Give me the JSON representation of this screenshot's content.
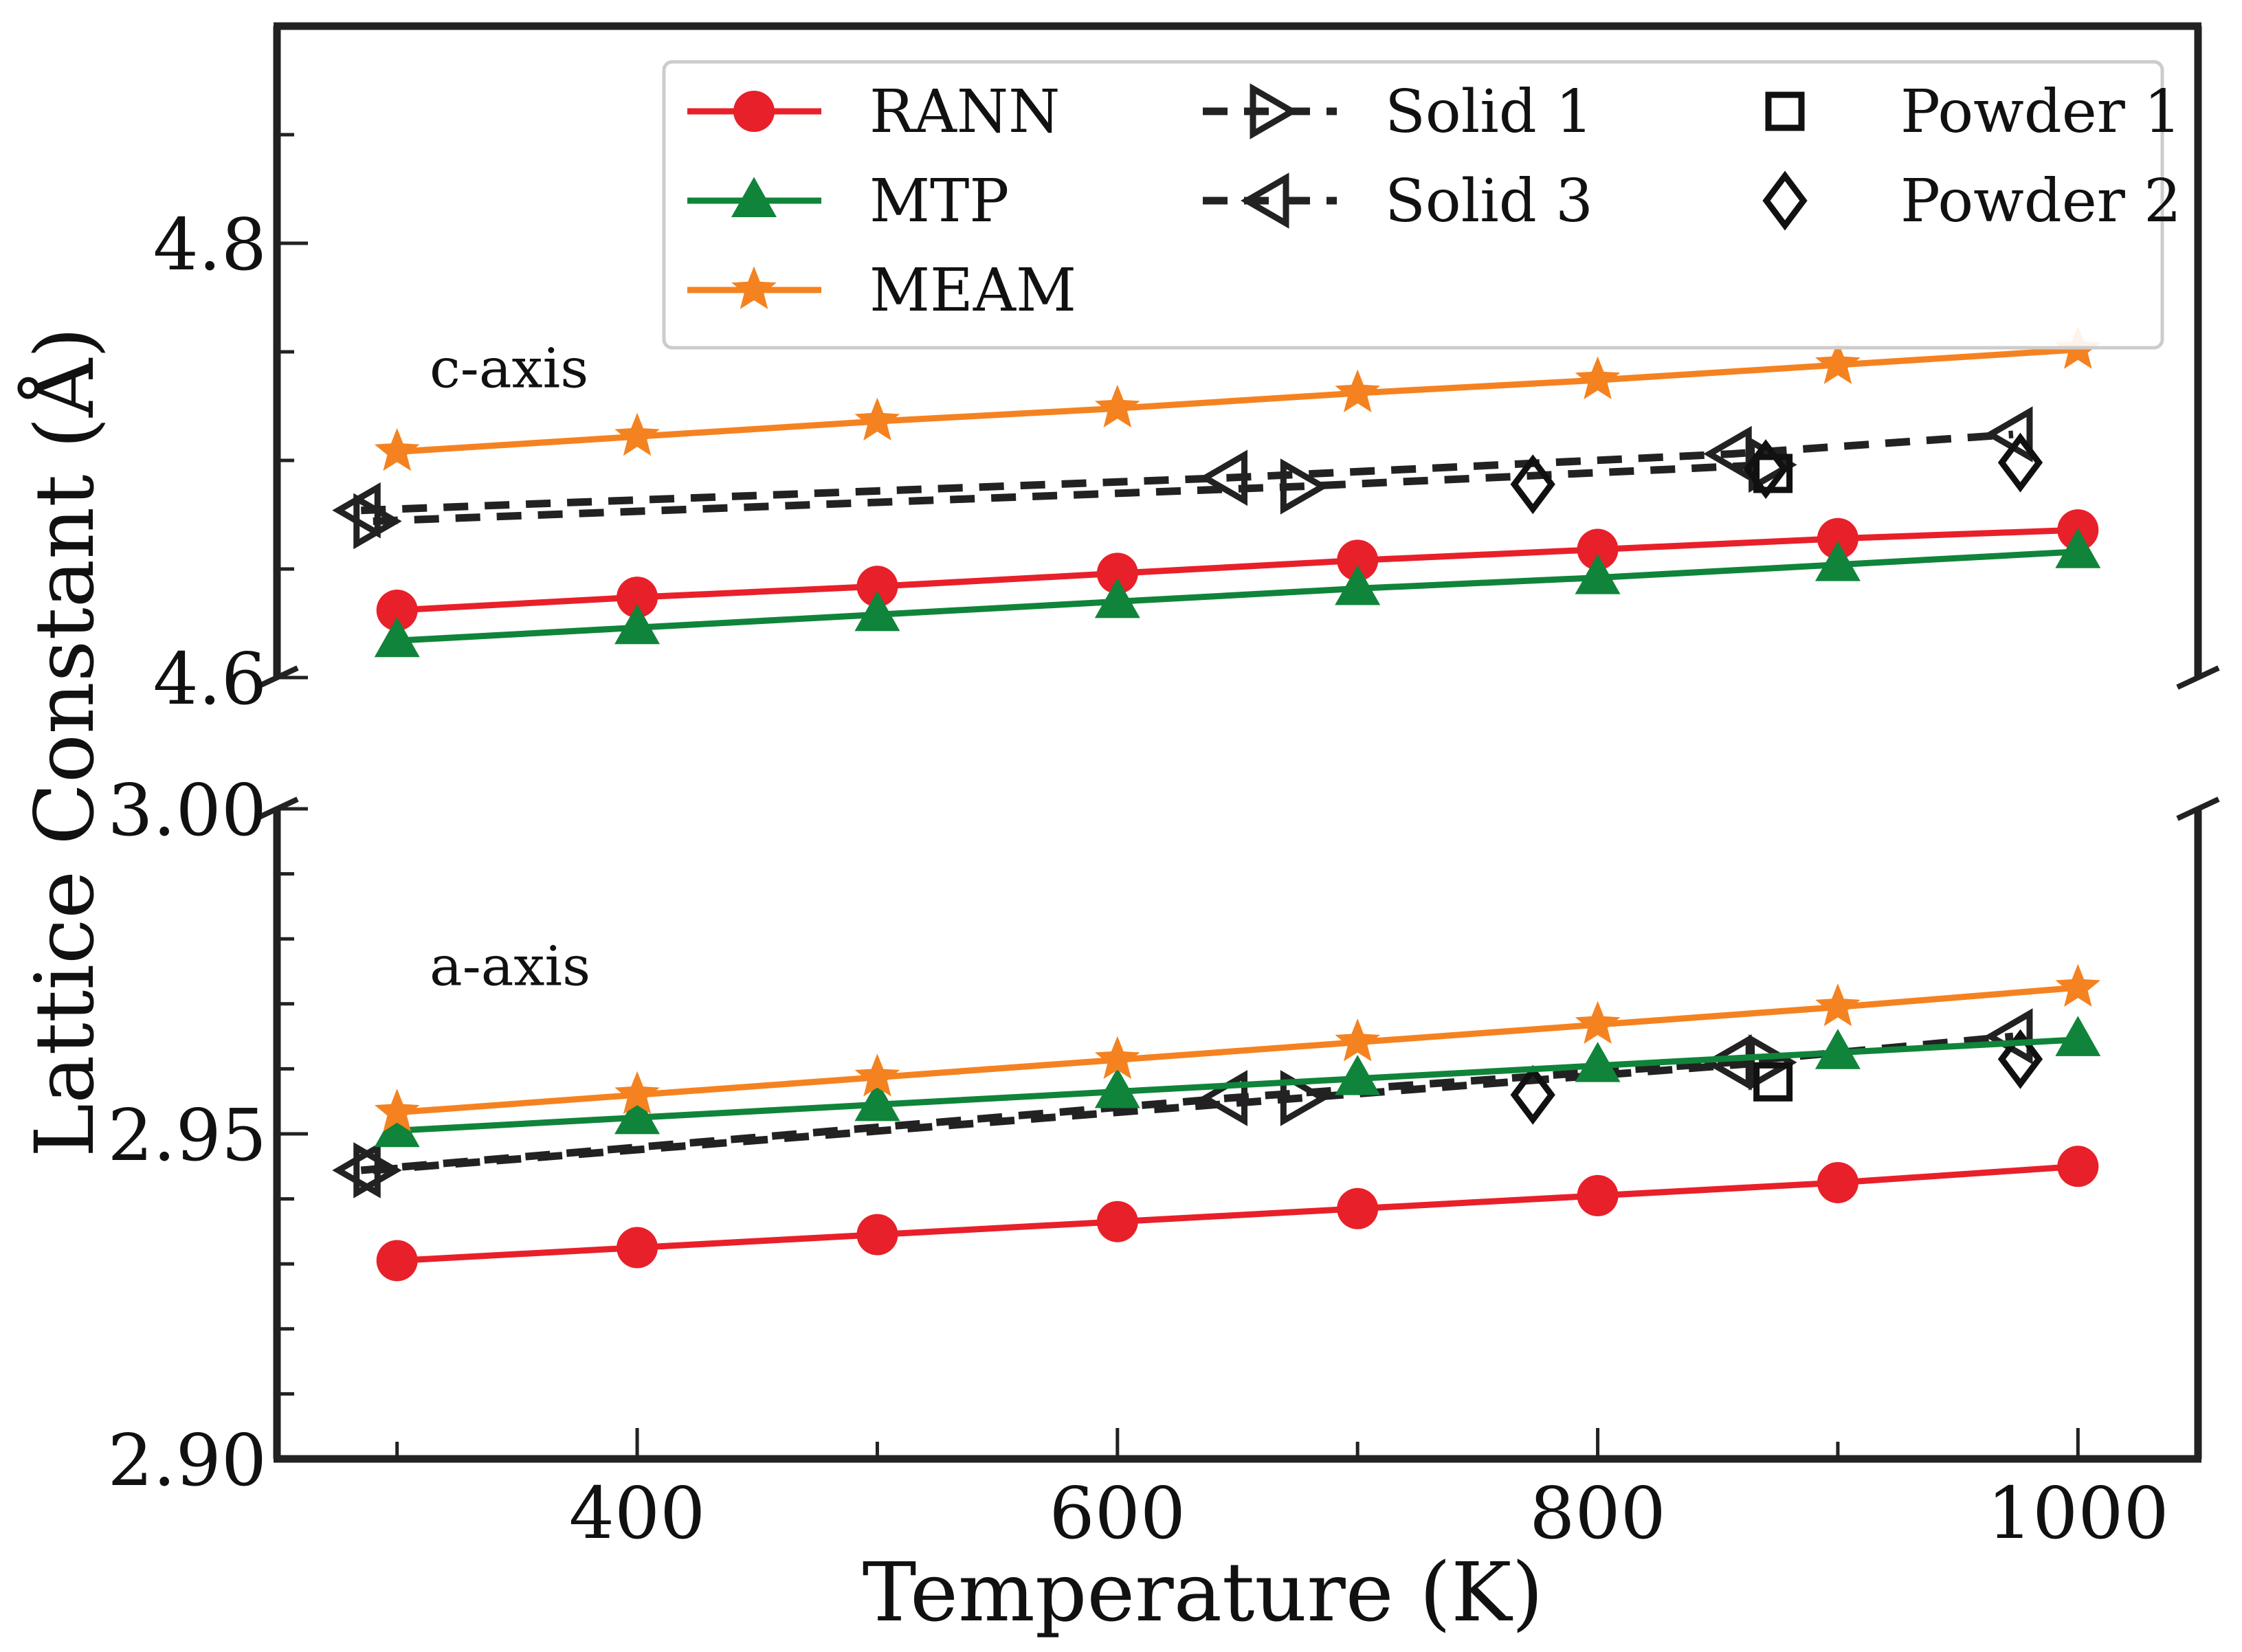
{
  "chart_data": {
    "type": "line",
    "title": "",
    "xlabel": "Temperature (K)",
    "ylabel": "Lattice Constant (Å)",
    "xlim": [
      250,
      1050
    ],
    "xticks": [
      400,
      600,
      800,
      1000
    ],
    "panels": [
      {
        "id": "top",
        "annotation": "c-axis",
        "ylim": [
          4.6,
          4.9
        ],
        "yticks": [
          4.6,
          4.8
        ],
        "ytick_labels": [
          "4.6",
          "4.8"
        ],
        "series": [
          {
            "name": "RANN",
            "x": [
              300,
              400,
              500,
              600,
              700,
              800,
              900,
              1000
            ],
            "y": [
              4.631,
              4.637,
              4.642,
              4.648,
              4.654,
              4.659,
              4.664,
              4.668
            ]
          },
          {
            "name": "MTP",
            "x": [
              300,
              400,
              500,
              600,
              700,
              800,
              900,
              1000
            ],
            "y": [
              4.617,
              4.623,
              4.629,
              4.635,
              4.641,
              4.646,
              4.652,
              4.658
            ]
          },
          {
            "name": "MEAM",
            "x": [
              300,
              400,
              500,
              600,
              700,
              800,
              900,
              1000
            ],
            "y": [
              4.704,
              4.711,
              4.718,
              4.724,
              4.731,
              4.737,
              4.744,
              4.751
            ]
          },
          {
            "name": "Solid 1",
            "x": [
              290,
              676,
              871
            ],
            "y": [
              4.672,
              4.688,
              4.698
            ]
          },
          {
            "name": "Solid 3",
            "x": [
              285,
              646,
              856,
              973
            ],
            "y": [
              4.677,
              4.692,
              4.703,
              4.712
            ]
          },
          {
            "name": "Powder 1",
            "x": [
              873
            ],
            "y": [
              4.694
            ]
          },
          {
            "name": "Powder 2",
            "x": [
              773,
              870,
              976
            ],
            "y": [
              4.689,
              4.696,
              4.699
            ]
          }
        ]
      },
      {
        "id": "bottom",
        "annotation": "a-axis",
        "ylim": [
          2.9,
          3.0
        ],
        "yticks": [
          2.9,
          2.95,
          3.0
        ],
        "ytick_labels": [
          "2.90",
          "2.95",
          "3.00"
        ],
        "series": [
          {
            "name": "RANN",
            "x": [
              300,
              400,
              500,
              600,
              700,
              800,
              900,
              1000
            ],
            "y": [
              2.9305,
              2.9325,
              2.9345,
              2.9365,
              2.9385,
              2.9405,
              2.9425,
              2.945
            ]
          },
          {
            "name": "MTP",
            "x": [
              300,
              400,
              500,
              600,
              700,
              800,
              900,
              1000
            ],
            "y": [
              2.9505,
              2.9525,
              2.9545,
              2.9565,
              2.9585,
              2.9605,
              2.9625,
              2.9645
            ]
          },
          {
            "name": "MEAM",
            "x": [
              300,
              400,
              500,
              600,
              700,
              800,
              900,
              1000
            ],
            "y": [
              2.9533,
              2.956,
              2.9587,
              2.9614,
              2.9641,
              2.9668,
              2.9695,
              2.9725
            ]
          },
          {
            "name": "Solid 1",
            "x": [
              290,
              676,
              871
            ],
            "y": [
              2.9444,
              2.9555,
              2.961
            ]
          },
          {
            "name": "Solid 3",
            "x": [
              285,
              646,
              856,
              973
            ],
            "y": [
              2.9444,
              2.9555,
              2.961,
              2.965
            ]
          },
          {
            "name": "Powder 1",
            "x": [
              873
            ],
            "y": [
              2.958
            ]
          },
          {
            "name": "Powder 2",
            "x": [
              773,
              976
            ],
            "y": [
              2.956,
              2.9615
            ]
          }
        ]
      }
    ],
    "legend": {
      "placement": "top-right",
      "entries": [
        {
          "name": "RANN",
          "color": "#e8202a",
          "marker": "circle",
          "line": "solid"
        },
        {
          "name": "MTP",
          "color": "#10843a",
          "marker": "triangle-up",
          "line": "solid"
        },
        {
          "name": "MEAM",
          "color": "#f58220",
          "marker": "star",
          "line": "solid"
        },
        {
          "name": "Solid 1",
          "color": "#222222",
          "marker": "triangle-right",
          "line": "dashed"
        },
        {
          "name": "Solid 3",
          "color": "#222222",
          "marker": "triangle-left",
          "line": "dashed"
        },
        {
          "name": "Powder 1",
          "color": "#111111",
          "marker": "square",
          "line": "none"
        },
        {
          "name": "Powder 2",
          "color": "#111111",
          "marker": "diamond",
          "line": "none"
        }
      ]
    }
  }
}
